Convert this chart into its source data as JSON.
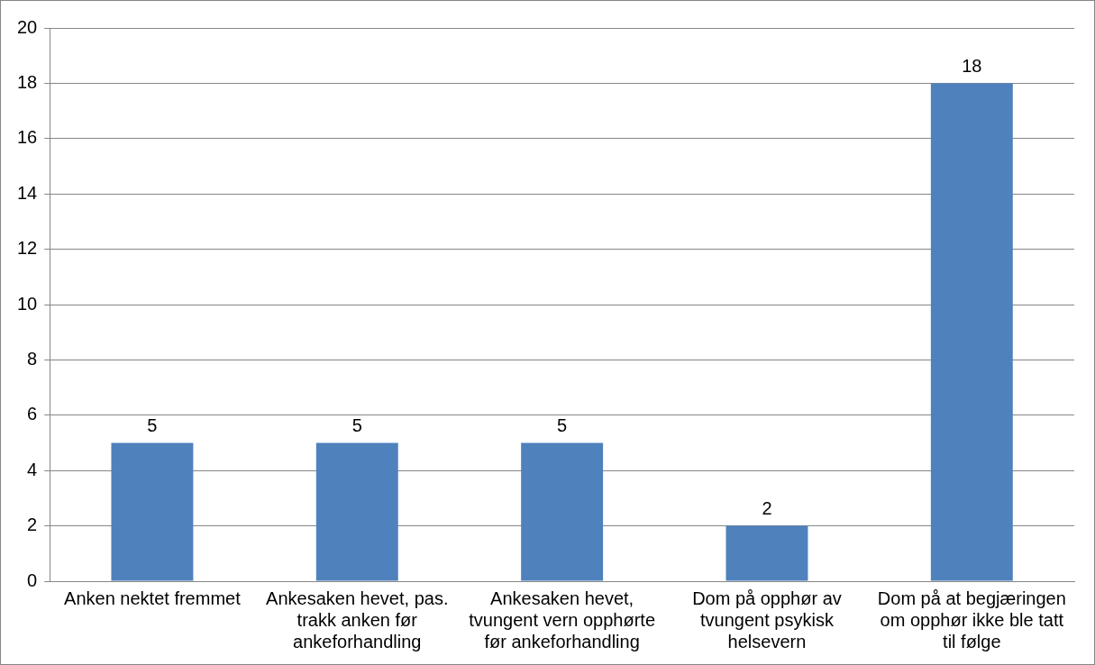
{
  "chart_data": {
    "type": "bar",
    "categories": [
      "Anken nektet fremmet",
      "Ankesaken hevet, pas. trakk anken før ankeforhandling",
      "Ankesaken hevet, tvungent vern opphørte før ankeforhandling",
      "Dom på opphør av tvungent psykisk helsevern",
      "Dom på at begjæringen om opphør ikke ble tatt til følge"
    ],
    "values": [
      5,
      5,
      5,
      2,
      18
    ],
    "color": "#4f81bd",
    "ylim": [
      0,
      20
    ],
    "yticks": [
      0,
      2,
      4,
      6,
      8,
      10,
      12,
      14,
      16,
      18,
      20
    ],
    "grid": "y",
    "data_labels": true,
    "legend": false
  }
}
